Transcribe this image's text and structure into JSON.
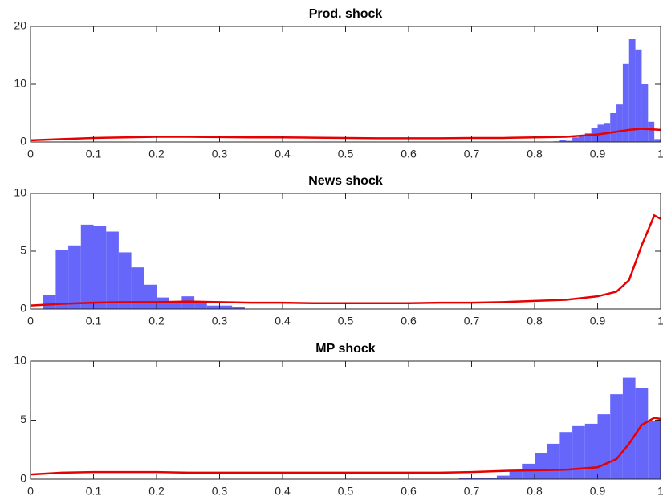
{
  "chart_data": [
    {
      "type": "histogram",
      "title": "Prod. shock",
      "bins": [
        0.83,
        0.84,
        0.85,
        0.86,
        0.87,
        0.88,
        0.89,
        0.9,
        0.91,
        0.92,
        0.93,
        0.94,
        0.95,
        0.96,
        0.97,
        0.98,
        0.99,
        1.0
      ],
      "values": [
        0.1,
        0.3,
        0.2,
        0.8,
        1.0,
        1.5,
        2.5,
        3.0,
        3.3,
        5.0,
        6.5,
        13.5,
        17.8,
        16,
        10,
        3.5,
        0.5
      ],
      "color": "#6666fa",
      "line": {
        "color": "#e60000",
        "x": [
          0,
          0.05,
          0.1,
          0.15,
          0.2,
          0.25,
          0.3,
          0.35,
          0.4,
          0.45,
          0.5,
          0.55,
          0.6,
          0.65,
          0.7,
          0.75,
          0.8,
          0.85,
          0.9,
          0.95,
          0.97,
          1.0
        ],
        "values": [
          0.3,
          0.5,
          0.7,
          0.8,
          0.9,
          0.9,
          0.85,
          0.8,
          0.8,
          0.75,
          0.7,
          0.65,
          0.65,
          0.65,
          0.7,
          0.7,
          0.8,
          0.9,
          1.3,
          2.1,
          2.3,
          2.1
        ]
      },
      "xlim": [
        0,
        1
      ],
      "xticks": [
        0,
        0.1,
        0.2,
        0.3,
        0.4,
        0.5,
        0.6,
        0.7,
        0.8,
        0.9,
        1
      ],
      "ylim": [
        0,
        20
      ],
      "yticks": [
        0,
        10,
        20
      ]
    },
    {
      "type": "histogram",
      "title": "News shock",
      "bins": [
        0.02,
        0.04,
        0.06,
        0.08,
        0.1,
        0.12,
        0.14,
        0.16,
        0.18,
        0.2,
        0.22,
        0.24,
        0.26,
        0.28,
        0.3,
        0.32,
        0.34
      ],
      "values": [
        1.2,
        5.1,
        5.5,
        7.3,
        7.2,
        6.7,
        4.9,
        3.6,
        2.1,
        1.0,
        0.6,
        1.1,
        0.5,
        0.3,
        0.3,
        0.2
      ],
      "color": "#6666fa",
      "line": {
        "color": "#e60000",
        "x": [
          0,
          0.05,
          0.1,
          0.15,
          0.2,
          0.25,
          0.3,
          0.35,
          0.4,
          0.45,
          0.5,
          0.55,
          0.6,
          0.65,
          0.7,
          0.75,
          0.8,
          0.85,
          0.9,
          0.93,
          0.95,
          0.97,
          0.99,
          1.0
        ],
        "values": [
          0.3,
          0.45,
          0.55,
          0.6,
          0.6,
          0.65,
          0.6,
          0.55,
          0.55,
          0.5,
          0.5,
          0.5,
          0.5,
          0.55,
          0.55,
          0.6,
          0.7,
          0.8,
          1.1,
          1.5,
          2.5,
          5.5,
          8.1,
          7.8
        ]
      },
      "xlim": [
        0,
        1
      ],
      "xticks": [
        0,
        0.1,
        0.2,
        0.3,
        0.4,
        0.5,
        0.6,
        0.7,
        0.8,
        0.9,
        1
      ],
      "ylim": [
        0,
        10
      ],
      "yticks": [
        0,
        5,
        10
      ]
    },
    {
      "type": "histogram",
      "title": "MP shock",
      "bins": [
        0.68,
        0.7,
        0.72,
        0.74,
        0.76,
        0.78,
        0.8,
        0.82,
        0.84,
        0.86,
        0.88,
        0.9,
        0.92,
        0.94,
        0.96,
        0.98,
        1.0
      ],
      "values": [
        0.1,
        0.1,
        0.1,
        0.3,
        0.7,
        1.3,
        2.2,
        3.0,
        4.0,
        4.5,
        4.7,
        5.5,
        7.2,
        8.6,
        7.7,
        4.9
      ],
      "color": "#6666fa",
      "line": {
        "color": "#e60000",
        "x": [
          0,
          0.05,
          0.1,
          0.15,
          0.2,
          0.25,
          0.3,
          0.35,
          0.4,
          0.45,
          0.5,
          0.55,
          0.6,
          0.65,
          0.7,
          0.75,
          0.8,
          0.85,
          0.9,
          0.93,
          0.95,
          0.97,
          0.99,
          1.0
        ],
        "values": [
          0.4,
          0.55,
          0.6,
          0.6,
          0.6,
          0.55,
          0.55,
          0.55,
          0.55,
          0.55,
          0.55,
          0.55,
          0.55,
          0.55,
          0.6,
          0.7,
          0.75,
          0.8,
          1.0,
          1.7,
          3.0,
          4.6,
          5.2,
          5.1
        ]
      },
      "xlim": [
        0,
        1
      ],
      "xticks": [
        0,
        0.1,
        0.2,
        0.3,
        0.4,
        0.5,
        0.6,
        0.7,
        0.8,
        0.9,
        1
      ],
      "ylim": [
        0,
        10
      ],
      "yticks": [
        0,
        5,
        10
      ]
    }
  ]
}
